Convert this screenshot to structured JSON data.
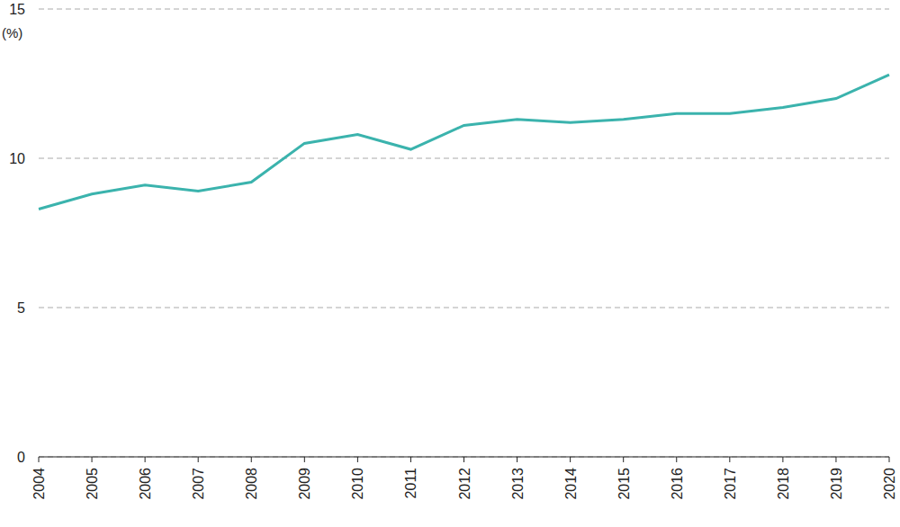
{
  "chart_data": {
    "type": "line",
    "y_label": "(%)",
    "categories": [
      "2004",
      "2005",
      "2006",
      "2007",
      "2008",
      "2009",
      "2010",
      "2011",
      "2012",
      "2013",
      "2014",
      "2015",
      "2016",
      "2017",
      "2018",
      "2019",
      "2020"
    ],
    "values": [
      8.3,
      8.8,
      9.1,
      8.9,
      9.2,
      10.5,
      10.8,
      10.3,
      11.1,
      11.3,
      11.2,
      11.3,
      11.5,
      11.5,
      11.7,
      12.0,
      12.8
    ],
    "color": "#3bb3ad",
    "ylim": [
      0,
      15
    ],
    "yticks": [
      0,
      5,
      10,
      15
    ],
    "grid": true
  }
}
